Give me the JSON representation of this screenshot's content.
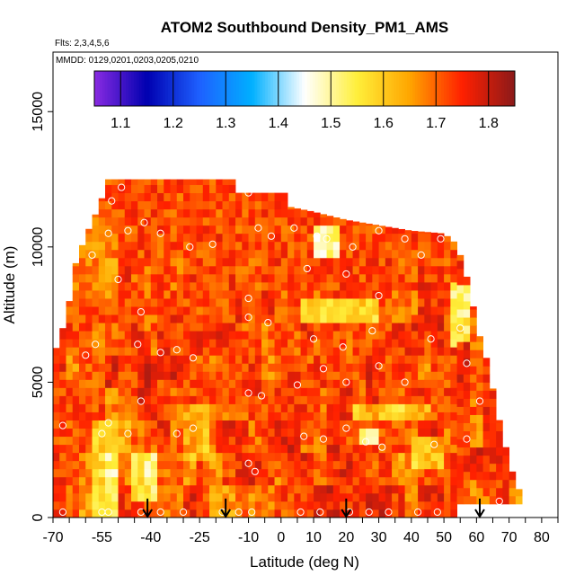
{
  "chart_data": {
    "type": "heatmap",
    "title": "ATOM2 Southbound Density_PM1_AMS",
    "flights_label": "Flts: 2,3,4,5,6",
    "mmdd_label": "MMDD: 0129,0201,0203,0205,0210",
    "xlabel": "Latitude (deg N)",
    "ylabel": "Altitude (m)",
    "xlim": [
      -70,
      85
    ],
    "ylim": [
      0,
      17200
    ],
    "x_ticks": [
      -70,
      -55,
      -40,
      -25,
      -10,
      0,
      10,
      20,
      30,
      40,
      50,
      60,
      70,
      80
    ],
    "x_tick_labels": [
      "-70",
      "-55",
      "-40",
      "-25",
      "-10",
      "0",
      "10",
      "20",
      "30",
      "40",
      "50",
      "60",
      "70",
      "80"
    ],
    "y_ticks": [
      0,
      5000,
      10000,
      15000
    ],
    "y_tick_labels": [
      "0",
      "5000",
      "10000",
      "15000"
    ],
    "colorbar": {
      "min": 1.05,
      "max": 1.85,
      "ticks": [
        1.1,
        1.2,
        1.3,
        1.4,
        1.5,
        1.6,
        1.7,
        1.8
      ],
      "tick_labels": [
        "1.1",
        "1.2",
        "1.3",
        "1.4",
        "1.5",
        "1.6",
        "1.7",
        "1.8"
      ],
      "colors": [
        "#8a2be2",
        "#0000b0",
        "#1e60ff",
        "#00b0ff",
        "#ffffff",
        "#ffef3a",
        "#ffa500",
        "#ff2000",
        "#8b1a1a"
      ]
    },
    "top_profile": [
      {
        "lat": -70,
        "top": 5900
      },
      {
        "lat": -67,
        "top": 7000
      },
      {
        "lat": -65,
        "top": 8000
      },
      {
        "lat": -63,
        "top": 9400
      },
      {
        "lat": -60,
        "top": 10400
      },
      {
        "lat": -57,
        "top": 11200
      },
      {
        "lat": -55,
        "top": 11800
      },
      {
        "lat": -53,
        "top": 12500
      },
      {
        "lat": -15,
        "top": 12500
      },
      {
        "lat": -15,
        "top": 12000
      },
      {
        "lat": 2,
        "top": 12000
      },
      {
        "lat": 2,
        "top": 11500
      },
      {
        "lat": 10,
        "top": 11300
      },
      {
        "lat": 20,
        "top": 11000
      },
      {
        "lat": 30,
        "top": 10800
      },
      {
        "lat": 40,
        "top": 10600
      },
      {
        "lat": 50,
        "top": 10500
      },
      {
        "lat": 53,
        "top": 10200
      },
      {
        "lat": 55,
        "top": 9700
      },
      {
        "lat": 58,
        "top": 8500
      },
      {
        "lat": 60,
        "top": 7100
      },
      {
        "lat": 63,
        "top": 5900
      },
      {
        "lat": 66,
        "top": 4200
      },
      {
        "lat": 68,
        "top": 3000
      },
      {
        "lat": 70,
        "top": 2200
      },
      {
        "lat": 72,
        "top": 1200
      },
      {
        "lat": 74,
        "top": 900
      }
    ],
    "surface_profile": [
      {
        "lat": -70,
        "bottom": 0
      },
      {
        "lat": 54,
        "bottom": 0
      },
      {
        "lat": 54,
        "bottom": 500
      },
      {
        "lat": 74,
        "bottom": 500
      }
    ],
    "grid": {
      "lat_start": -70,
      "lat_step": 4,
      "alt_start": 0,
      "alt_step": 600,
      "density": [
        [
          1.76,
          1.7,
          1.64,
          1.55,
          1.55,
          1.74,
          1.73,
          1.72,
          1.7,
          1.68,
          1.76,
          1.71,
          1.64,
          1.65,
          1.7,
          1.68,
          1.68,
          1.72,
          1.73,
          1.72,
          1.76,
          1.77,
          1.74,
          1.75,
          1.76,
          1.77,
          1.73,
          1.68,
          1.75,
          1.76,
          1.73,
          1.72,
          1.68,
          1.7,
          1.73,
          1.67,
          1.71,
          1.71
        ],
        [
          1.73,
          1.73,
          1.67,
          1.58,
          1.51,
          1.69,
          1.74,
          1.69,
          1.69,
          1.71,
          1.66,
          1.72,
          1.67,
          1.72,
          1.75,
          1.77,
          1.73,
          1.69,
          1.74,
          1.76,
          1.71,
          1.74,
          1.76,
          1.74,
          1.69,
          1.73,
          1.65,
          1.68,
          1.71,
          1.71,
          1.73,
          1.74,
          1.78,
          1.74,
          1.74,
          1.75,
          1.69,
          1.67
        ],
        [
          1.71,
          1.71,
          1.73,
          1.6,
          1.59,
          1.64,
          1.7,
          1.71,
          1.75,
          1.7,
          1.72,
          1.69,
          1.75,
          1.75,
          1.74,
          1.7,
          1.73,
          1.76,
          1.77,
          1.7,
          1.7,
          1.76,
          1.7,
          1.73,
          1.74,
          1.71,
          1.72,
          1.7,
          1.72,
          1.76,
          1.69,
          1.7,
          1.65,
          1.73,
          1.75,
          1.73,
          1.69,
          1.73
        ],
        [
          1.73,
          1.72,
          1.71,
          1.72,
          1.67,
          1.71,
          1.71,
          1.69,
          1.71,
          1.69,
          1.72,
          1.73,
          1.71,
          1.7,
          1.7,
          1.74,
          1.71,
          1.73,
          1.73,
          1.74,
          1.7,
          1.73,
          1.76,
          1.7,
          1.75,
          1.72,
          1.7,
          1.72,
          1.75,
          1.71,
          1.73,
          1.73,
          1.7,
          1.74,
          1.71,
          1.69,
          1.68,
          1.74
        ],
        [
          1.74,
          1.67,
          1.7,
          1.7,
          1.76,
          1.7,
          1.72,
          1.72,
          1.73,
          1.77,
          1.72,
          1.71,
          1.7,
          1.73,
          1.72,
          1.74,
          1.67,
          1.72,
          1.74,
          1.71,
          1.73,
          1.72,
          1.72,
          1.69,
          1.76,
          1.72,
          1.75,
          1.71,
          1.68,
          1.72,
          1.72,
          1.76,
          1.71,
          1.73,
          1.74,
          1.71,
          1.7,
          1.77
        ],
        [
          1.75,
          1.72,
          1.72,
          1.68,
          1.71,
          1.7,
          1.74,
          1.7,
          1.74,
          1.7,
          1.73,
          1.74,
          1.75,
          1.74,
          1.71,
          1.73,
          1.69,
          1.72,
          1.7,
          1.75,
          1.7,
          1.72,
          1.71,
          1.72,
          1.72,
          1.72,
          1.74,
          1.75,
          1.73,
          1.76,
          1.73,
          1.75,
          1.7,
          1.75,
          1.71,
          1.68,
          1.73,
          1.72
        ],
        [
          1.72,
          1.71,
          1.71,
          1.72,
          1.71,
          1.72,
          1.73,
          1.7,
          1.72,
          1.74,
          1.72,
          1.72,
          1.7,
          1.71,
          1.74,
          1.71,
          1.74,
          1.7,
          1.74,
          1.73,
          1.7,
          1.73,
          1.72,
          1.73,
          1.72,
          1.71,
          1.7,
          1.68,
          1.74,
          1.75,
          1.73,
          1.73,
          1.73,
          1.72,
          1.74,
          1.7,
          1.68,
          1.73
        ],
        [
          1.71,
          1.72,
          1.72,
          1.72,
          1.7,
          1.74,
          1.71,
          1.7,
          1.72,
          1.7,
          1.73,
          1.72,
          1.71,
          1.73,
          1.72,
          1.71,
          1.73,
          1.73,
          1.74,
          1.72,
          1.72,
          1.73,
          1.73,
          1.72,
          1.74,
          1.73,
          1.71,
          1.71,
          1.74,
          1.73,
          1.72,
          1.73,
          1.71,
          1.72,
          1.74,
          1.72,
          1.73,
          1.7
        ],
        [
          1.71,
          1.72,
          1.71,
          1.72,
          1.72,
          1.73,
          1.72,
          1.72,
          1.72,
          1.72,
          1.72,
          1.72,
          1.73,
          1.72,
          1.72,
          1.72,
          1.72,
          1.72,
          1.72,
          1.72,
          1.71,
          1.73,
          1.72,
          1.72,
          1.72,
          1.72,
          1.72,
          1.72,
          1.72,
          1.72,
          1.72,
          1.72,
          1.72,
          1.72,
          1.72,
          1.72,
          1.72,
          1.72
        ],
        [
          1.72,
          1.72,
          1.72,
          1.72,
          1.72,
          1.72,
          1.72,
          1.72,
          1.72,
          1.72,
          1.72,
          1.72,
          1.72,
          1.72,
          1.72,
          1.72,
          1.72,
          1.72,
          1.72,
          1.72,
          1.72,
          1.72,
          1.72,
          1.72,
          1.72,
          1.72,
          1.72,
          1.72,
          1.72,
          1.72,
          1.72,
          1.72,
          1.72,
          1.72,
          1.72,
          1.72,
          1.72,
          1.72
        ]
      ]
    },
    "data_points": [
      {
        "lat": -67,
        "alt": 200
      },
      {
        "lat": -55,
        "alt": 200
      },
      {
        "lat": -53,
        "alt": 200
      },
      {
        "lat": -43,
        "alt": 200
      },
      {
        "lat": -37,
        "alt": 200
      },
      {
        "lat": -30,
        "alt": 200
      },
      {
        "lat": -18,
        "alt": 200
      },
      {
        "lat": -13,
        "alt": 200
      },
      {
        "lat": -9,
        "alt": 200
      },
      {
        "lat": 6,
        "alt": 200
      },
      {
        "lat": 12,
        "alt": 200
      },
      {
        "lat": 21,
        "alt": 200
      },
      {
        "lat": 27,
        "alt": 200
      },
      {
        "lat": 33,
        "alt": 200
      },
      {
        "lat": 42,
        "alt": 200
      },
      {
        "lat": 48,
        "alt": 200
      },
      {
        "lat": 56,
        "alt": 200
      },
      {
        "lat": 67,
        "alt": 600
      },
      {
        "lat": -67,
        "alt": 3400
      },
      {
        "lat": -55,
        "alt": 3100
      },
      {
        "lat": -53,
        "alt": 3500
      },
      {
        "lat": -47,
        "alt": 3100
      },
      {
        "lat": -43,
        "alt": 4300
      },
      {
        "lat": -32,
        "alt": 3100
      },
      {
        "lat": -27,
        "alt": 3300
      },
      {
        "lat": -10,
        "alt": 2000
      },
      {
        "lat": -8,
        "alt": 1700
      },
      {
        "lat": 7,
        "alt": 3000
      },
      {
        "lat": 13,
        "alt": 2900
      },
      {
        "lat": 20,
        "alt": 3300
      },
      {
        "lat": 26,
        "alt": 2800
      },
      {
        "lat": 31,
        "alt": 2600
      },
      {
        "lat": 47,
        "alt": 2700
      },
      {
        "lat": 57,
        "alt": 2900
      },
      {
        "lat": 61,
        "alt": 4300
      },
      {
        "lat": -10,
        "alt": 4600
      },
      {
        "lat": -6,
        "alt": 4500
      },
      {
        "lat": 5,
        "alt": 4900
      },
      {
        "lat": 13,
        "alt": 5500
      },
      {
        "lat": 20,
        "alt": 5000
      },
      {
        "lat": 30,
        "alt": 5600
      },
      {
        "lat": 38,
        "alt": 5000
      },
      {
        "lat": 57,
        "alt": 5700
      },
      {
        "lat": -60,
        "alt": 6000
      },
      {
        "lat": -57,
        "alt": 6400
      },
      {
        "lat": -44,
        "alt": 6400
      },
      {
        "lat": -37,
        "alt": 6100
      },
      {
        "lat": -32,
        "alt": 6200
      },
      {
        "lat": -27,
        "alt": 5900
      },
      {
        "lat": -10,
        "alt": 7400
      },
      {
        "lat": -4,
        "alt": 7200
      },
      {
        "lat": 10,
        "alt": 6600
      },
      {
        "lat": 19,
        "alt": 6300
      },
      {
        "lat": 28,
        "alt": 6900
      },
      {
        "lat": 46,
        "alt": 6600
      },
      {
        "lat": 55,
        "alt": 7000
      },
      {
        "lat": -43,
        "alt": 7600
      },
      {
        "lat": -50,
        "alt": 8800
      },
      {
        "lat": -10,
        "alt": 8100
      },
      {
        "lat": 8,
        "alt": 9200
      },
      {
        "lat": 20,
        "alt": 9000
      },
      {
        "lat": 30,
        "alt": 8200
      },
      {
        "lat": 43,
        "alt": 9700
      },
      {
        "lat": -58,
        "alt": 9700
      },
      {
        "lat": -53,
        "alt": 10500
      },
      {
        "lat": -47,
        "alt": 10600
      },
      {
        "lat": -37,
        "alt": 10500
      },
      {
        "lat": -28,
        "alt": 10000
      },
      {
        "lat": -21,
        "alt": 10100
      },
      {
        "lat": -3,
        "alt": 10400
      },
      {
        "lat": 4,
        "alt": 10700
      },
      {
        "lat": 11,
        "alt": 10400
      },
      {
        "lat": 14,
        "alt": 10300
      },
      {
        "lat": 22,
        "alt": 10000
      },
      {
        "lat": 30,
        "alt": 10600
      },
      {
        "lat": 38,
        "alt": 10300
      },
      {
        "lat": 49,
        "alt": 10300
      },
      {
        "lat": -52,
        "alt": 11700
      },
      {
        "lat": -49,
        "alt": 12200
      },
      {
        "lat": -10,
        "alt": 12000
      },
      {
        "lat": -42,
        "alt": 10900
      },
      {
        "lat": -7,
        "alt": 10700
      }
    ],
    "flight_markers": [
      {
        "lat": -41,
        "alt_top": 700
      },
      {
        "lat": -17,
        "alt_top": 700
      },
      {
        "lat": 20,
        "alt_top": 700
      },
      {
        "lat": 61,
        "alt_top": 700
      }
    ]
  }
}
